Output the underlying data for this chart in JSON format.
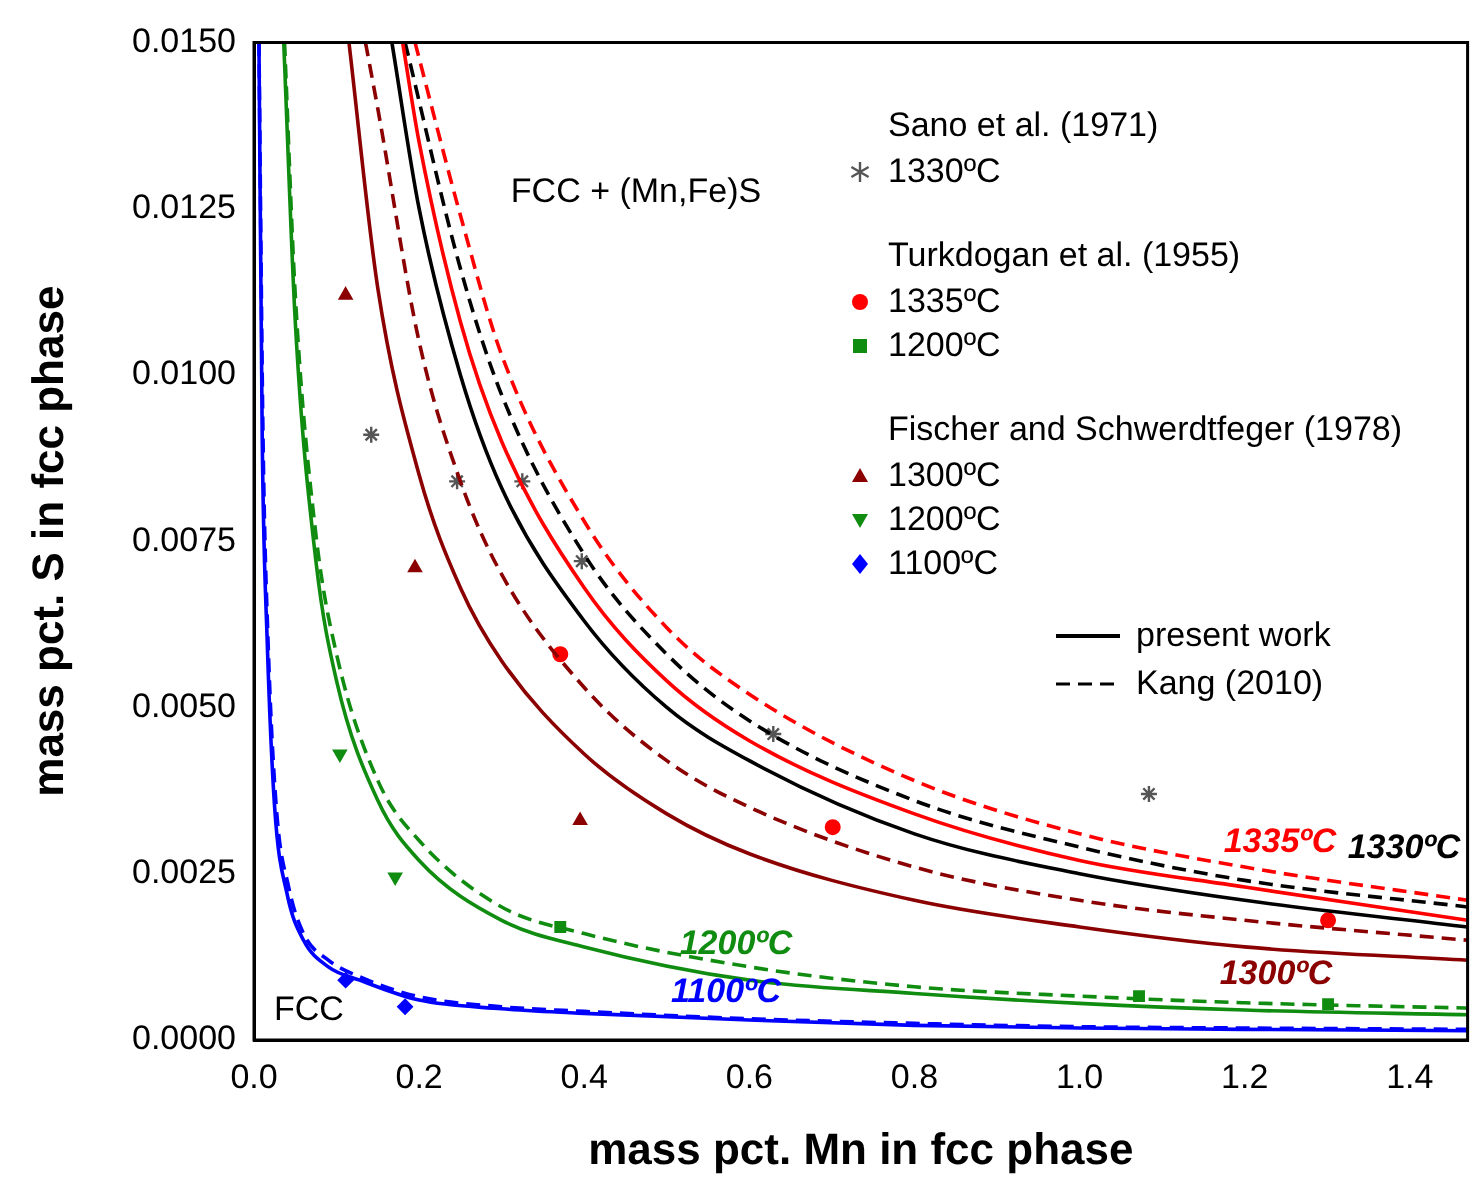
{
  "chart_data": {
    "type": "scatter",
    "xlabel": "mass pct. Mn in fcc phase",
    "ylabel": "mass pct. S in fcc phase",
    "xlim": [
      0,
      1.47
    ],
    "ylim": [
      0,
      0.015
    ],
    "xticks": [
      {
        "value": 0,
        "label": "0.0"
      },
      {
        "value": 0.2,
        "label": "0.2"
      },
      {
        "value": 0.4,
        "label": "0.4"
      },
      {
        "value": 0.6,
        "label": "0.6"
      },
      {
        "value": 0.8,
        "label": "0.8"
      },
      {
        "value": 1.0,
        "label": "1.0"
      },
      {
        "value": 1.2,
        "label": "1.2"
      },
      {
        "value": 1.4,
        "label": "1.4"
      }
    ],
    "yticks": [
      {
        "value": 0,
        "label": "0.0000"
      },
      {
        "value": 0.0025,
        "label": "0.0025"
      },
      {
        "value": 0.005,
        "label": "0.0050"
      },
      {
        "value": 0.0075,
        "label": "0.0075"
      },
      {
        "value": 0.01,
        "label": "0.0100"
      },
      {
        "value": 0.0125,
        "label": "0.0125"
      },
      {
        "value": 0.015,
        "label": "0.0150"
      }
    ],
    "legend": "top right",
    "series": [
      {
        "type": "line",
        "color": "#ff0000",
        "line_style": "solid",
        "marker": "none",
        "x": [
          0.18,
          0.2,
          0.25,
          0.3,
          0.4,
          0.5,
          0.6,
          0.8,
          1.0,
          1.2,
          1.47
        ],
        "values": [
          0.015,
          0.0135,
          0.0108,
          0.009,
          0.0068,
          0.0054,
          0.0045,
          0.0034,
          0.0027,
          0.0023,
          0.0018
        ]
      },
      {
        "type": "line",
        "color": "#000000",
        "line_style": "solid",
        "marker": "none",
        "x": [
          0.167,
          0.2,
          0.25,
          0.3,
          0.4,
          0.5,
          0.6,
          0.8,
          1.0,
          1.2,
          1.47
        ],
        "values": [
          0.015,
          0.0125,
          0.01,
          0.0083,
          0.0063,
          0.005,
          0.0042,
          0.0031,
          0.0025,
          0.0021,
          0.0017
        ]
      },
      {
        "type": "line",
        "color": "#8b0000",
        "line_style": "solid",
        "marker": "none",
        "x": [
          0.115,
          0.15,
          0.2,
          0.25,
          0.3,
          0.4,
          0.5,
          0.6,
          0.8,
          1.0,
          1.2,
          1.47
        ],
        "values": [
          0.015,
          0.0113,
          0.0085,
          0.0068,
          0.0057,
          0.0043,
          0.0034,
          0.0028,
          0.0021,
          0.0017,
          0.0014,
          0.0012
        ]
      },
      {
        "type": "line",
        "color": "#108c10",
        "line_style": "solid",
        "marker": "none",
        "x": [
          0.036,
          0.05,
          0.075,
          0.1,
          0.15,
          0.2,
          0.3,
          0.4,
          0.6,
          0.8,
          1.0,
          1.2,
          1.47
        ],
        "values": [
          0.015,
          0.0108,
          0.0072,
          0.0054,
          0.0036,
          0.0027,
          0.0018,
          0.0014,
          0.0009,
          0.0007,
          0.00055,
          0.00045,
          0.00038
        ]
      },
      {
        "type": "line",
        "color": "#0000ff",
        "line_style": "solid",
        "marker": "none",
        "x": [
          0.006,
          0.01,
          0.016,
          0.025,
          0.04,
          0.06,
          0.09,
          0.128,
          0.2,
          0.3,
          0.4,
          0.6,
          0.8,
          1.0,
          1.2,
          1.47
        ],
        "values": [
          0.015,
          0.009,
          0.006,
          0.0035,
          0.0022,
          0.0015,
          0.0011,
          0.0009,
          0.0006,
          0.00047,
          0.0004,
          0.0003,
          0.00022,
          0.00018,
          0.00016,
          0.00014
        ]
      },
      {
        "type": "line",
        "color": "#ff0000",
        "line_style": "dashed",
        "marker": "none",
        "x": [
          0.195,
          0.25,
          0.3,
          0.4,
          0.5,
          0.6,
          0.8,
          1.0,
          1.2,
          1.47
        ],
        "values": [
          0.015,
          0.0124,
          0.0103,
          0.0078,
          0.0062,
          0.0052,
          0.0039,
          0.0031,
          0.0026,
          0.0021
        ]
      },
      {
        "type": "line",
        "color": "#000000",
        "line_style": "dashed",
        "marker": "none",
        "x": [
          0.183,
          0.25,
          0.3,
          0.4,
          0.5,
          0.6,
          0.8,
          1.0,
          1.2,
          1.47
        ],
        "values": [
          0.015,
          0.0116,
          0.0097,
          0.0073,
          0.0058,
          0.0048,
          0.0036,
          0.0029,
          0.0024,
          0.002
        ]
      },
      {
        "type": "line",
        "color": "#8b0000",
        "line_style": "dashed",
        "marker": "none",
        "x": [
          0.135,
          0.15,
          0.2,
          0.25,
          0.3,
          0.4,
          0.5,
          0.6,
          0.8,
          1.0,
          1.2,
          1.47
        ],
        "values": [
          0.015,
          0.014,
          0.0105,
          0.0084,
          0.007,
          0.0053,
          0.0042,
          0.0035,
          0.0026,
          0.0021,
          0.0018,
          0.0015
        ]
      },
      {
        "type": "line",
        "color": "#108c10",
        "line_style": "dashed",
        "marker": "none",
        "x": [
          0.037,
          0.05,
          0.075,
          0.1,
          0.15,
          0.2,
          0.3,
          0.4,
          0.6,
          0.8,
          1.0,
          1.2,
          1.47
        ],
        "values": [
          0.015,
          0.0112,
          0.0076,
          0.0058,
          0.0039,
          0.003,
          0.002,
          0.0016,
          0.0011,
          0.0008,
          0.00066,
          0.00056,
          0.00048
        ]
      },
      {
        "type": "line",
        "color": "#0000ff",
        "line_style": "dashed",
        "marker": "none",
        "x": [
          0.006,
          0.011,
          0.017,
          0.027,
          0.042,
          0.06,
          0.09,
          0.128,
          0.2,
          0.3,
          0.4,
          0.6,
          0.8,
          1.0,
          1.2,
          1.47
        ],
        "values": [
          0.015,
          0.009,
          0.006,
          0.0035,
          0.0023,
          0.0016,
          0.0012,
          0.00095,
          0.00065,
          0.0005,
          0.00043,
          0.00032,
          0.00025,
          0.0002,
          0.00018,
          0.00016
        ]
      },
      {
        "type": "scatter",
        "name": "1330ºC",
        "color": "#555555",
        "marker": "cross",
        "x": [
          0.142,
          0.246,
          0.325,
          0.397,
          0.629,
          1.084
        ],
        "values": [
          0.0091,
          0.0084,
          0.0084,
          0.0072,
          0.0046,
          0.0037
        ]
      },
      {
        "type": "scatter",
        "name": "1335ºC",
        "color": "#ff0000",
        "marker": "circle",
        "x": [
          0.371,
          0.701,
          1.301
        ],
        "values": [
          0.0058,
          0.0032,
          0.0018
        ]
      },
      {
        "type": "scatter",
        "name": "1200ºC",
        "color": "#108c10",
        "marker": "square",
        "x": [
          0.371,
          1.072,
          1.301
        ],
        "values": [
          0.0017,
          0.00066,
          0.00054
        ]
      },
      {
        "type": "scatter",
        "name": "1300ºC",
        "color": "#8b0000",
        "marker": "triangle",
        "x": [
          0.111,
          0.195,
          0.395
        ],
        "values": [
          0.0112,
          0.0071,
          0.0033
        ]
      },
      {
        "type": "scatter",
        "name": "1200ºC",
        "color": "#108c10",
        "marker": "triangle-down",
        "x": [
          0.104,
          0.171
        ],
        "values": [
          0.0043,
          0.00245
        ]
      },
      {
        "type": "scatter",
        "name": "1100ºC",
        "color": "#0000ff",
        "marker": "diamond",
        "x": [
          0.111,
          0.183
        ],
        "values": [
          0.0009,
          0.0005
        ]
      }
    ],
    "annotations": [
      "FCC + (Mn,Fe)S",
      "FCC",
      "Sano et al. (1971)",
      "Turkdogan et al. (1955)",
      "Fischer and Schwerdtfeger (1978)",
      "present work",
      "Kang (2010)",
      "1335ºC",
      "1330ºC",
      "1300ºC",
      "1200ºC",
      "1100ºC"
    ]
  }
}
